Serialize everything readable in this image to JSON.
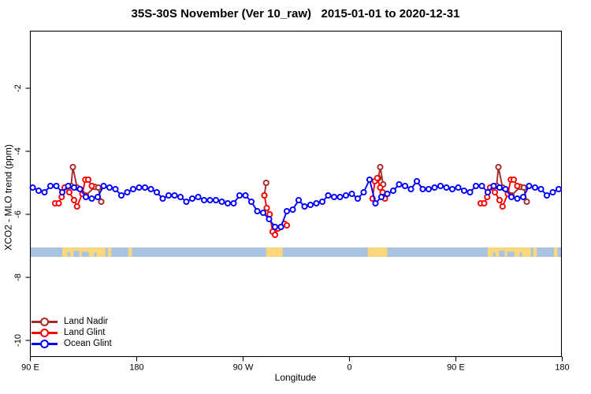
{
  "title": "35S-30S November (Ver 10_raw)   2015-01-01 to 2020-12-31",
  "axes": {
    "xlabel": "Longitude",
    "ylabel": "XCO2 - MLO trend (ppm)",
    "x_unit_note": "axis coordinate = degrees eastward of 90E, wrapping past the dateline; span 0-450",
    "xlim": [
      0,
      450
    ],
    "ylim": [
      -10.55,
      -0.2
    ],
    "x_ticks": [
      {
        "pos": 0,
        "label": "90 E"
      },
      {
        "pos": 90,
        "label": "180"
      },
      {
        "pos": 180,
        "label": "90 W"
      },
      {
        "pos": 270,
        "label": "0"
      },
      {
        "pos": 360,
        "label": "90 E"
      },
      {
        "pos": 450,
        "label": "180"
      }
    ],
    "y_ticks": [
      {
        "val": -2,
        "label": "-2"
      },
      {
        "val": -4,
        "label": "-4"
      },
      {
        "val": -6,
        "label": "-6"
      },
      {
        "val": -8,
        "label": "-8"
      },
      {
        "val": -10,
        "label": "-10"
      }
    ]
  },
  "legend": {
    "items": [
      {
        "label": "Land Nadir"
      },
      {
        "label": "Land Glint"
      },
      {
        "label": "Ocean Glint"
      }
    ]
  },
  "chart_data": {
    "type": "line",
    "marker": "open-circle",
    "x_axis": "degrees east of 90E (0-450, longitudes repeat after 360)",
    "y_axis": "XCO2 - MLO trend (ppm)",
    "series": [
      {
        "name": "Land Nadir",
        "color": "#A52A2A",
        "segments": [
          [
            [
              34.5,
              -5.1
            ],
            [
              36,
              -4.5
            ],
            [
              39.5,
              -5.15
            ],
            [
              47,
              -5.4
            ],
            [
              54.5,
              -5.13
            ],
            [
              57.5,
              -5.15
            ],
            [
              60,
              -5.6
            ]
          ],
          [
            [
              198,
              -5.4
            ],
            [
              199.5,
              -5.0
            ]
          ],
          [
            [
              294.5,
              -4.85
            ],
            [
              296,
              -4.5
            ],
            [
              298.5,
              -5.05
            ]
          ],
          [
            [
              394.5,
              -5.1
            ],
            [
              396,
              -4.5
            ],
            [
              399.5,
              -5.15
            ],
            [
              407,
              -5.4
            ],
            [
              414.5,
              -5.13
            ],
            [
              417.5,
              -5.15
            ],
            [
              420,
              -5.6
            ]
          ]
        ]
      },
      {
        "name": "Land Glint",
        "color": "#FF0000",
        "segments": [
          [
            [
              21,
              -5.65
            ],
            [
              24,
              -5.65
            ],
            [
              26.5,
              -5.45
            ],
            [
              29,
              -5.15
            ],
            [
              33,
              -5.3
            ],
            [
              37,
              -5.55
            ],
            [
              39.5,
              -5.75
            ],
            [
              44,
              -5.35
            ],
            [
              46.5,
              -4.9
            ],
            [
              49,
              -4.9
            ],
            [
              52,
              -5.1
            ]
          ],
          [
            [
              198,
              -5.4
            ],
            [
              200,
              -5.8
            ],
            [
              202.5,
              -6.0
            ],
            [
              205,
              -6.55
            ],
            [
              207,
              -6.65
            ],
            [
              209.5,
              -6.45
            ],
            [
              212,
              -6.4
            ],
            [
              215,
              -6.3
            ],
            [
              217,
              -6.35
            ]
          ],
          [
            [
              289.5,
              -5.5
            ],
            [
              291.5,
              -4.95
            ],
            [
              293.5,
              -4.85
            ],
            [
              296,
              -5.15
            ],
            [
              298,
              -5.3
            ],
            [
              300,
              -5.5
            ]
          ],
          [
            [
              381,
              -5.65
            ],
            [
              384,
              -5.65
            ],
            [
              386.5,
              -5.45
            ],
            [
              389,
              -5.15
            ],
            [
              393,
              -5.3
            ],
            [
              397,
              -5.55
            ],
            [
              399.5,
              -5.75
            ],
            [
              404,
              -5.35
            ],
            [
              406.5,
              -4.9
            ],
            [
              409,
              -4.9
            ],
            [
              412,
              -5.1
            ]
          ]
        ]
      },
      {
        "name": "Ocean Glint",
        "color": "#0000FF",
        "x_start": 2,
        "x_step": 5,
        "values": [
          -5.15,
          -5.25,
          -5.3,
          -5.1,
          -5.1,
          -5.3,
          -5.1,
          -5.15,
          -5.2,
          -5.45,
          -5.5,
          -5.45,
          -5.1,
          -5.15,
          -5.2,
          -5.4,
          -5.3,
          -5.2,
          -5.15,
          -5.15,
          -5.2,
          -5.3,
          -5.5,
          -5.4,
          -5.4,
          -5.45,
          -5.6,
          -5.5,
          -5.45,
          -5.55,
          -5.55,
          -5.55,
          -5.6,
          -5.65,
          -5.65,
          -5.4,
          -5.4,
          -5.6,
          -5.9,
          -5.95,
          -6.15,
          -6.4,
          -6.4,
          -5.9,
          -5.85,
          -5.55,
          -5.75,
          -5.7,
          -5.65,
          -5.6,
          -5.4,
          -5.45,
          -5.45,
          -5.4,
          -5.35,
          -5.5,
          -5.3,
          -4.9,
          -5.65,
          -5.45,
          -5.35,
          -5.25,
          -5.05,
          -5.1,
          -5.2,
          -4.95,
          -5.2,
          -5.2,
          -5.15,
          -5.1,
          -5.15,
          -5.2,
          -5.15,
          -5.25,
          -5.3,
          -5.1,
          -5.1,
          -5.3,
          -5.1,
          -5.15,
          -5.2,
          -5.45,
          -5.5,
          -5.45,
          -5.1,
          -5.15,
          -5.2,
          -5.4,
          -5.3,
          -5.2
        ]
      }
    ],
    "map_strip": {
      "description": "land/ocean strip for 35S-30S latitude band",
      "ocean_color": "#A9C3E1",
      "land_color": "#F9D77E",
      "val_top": -7.05,
      "val_bottom": -7.35,
      "land_patches": [
        {
          "from": 27,
          "to": 63.5
        },
        {
          "from": 65.5,
          "to": 68.5
        },
        {
          "from": 83,
          "to": 86
        },
        {
          "from": 199.5,
          "to": 213.5
        },
        {
          "from": 285.5,
          "to": 302
        },
        {
          "from": 387,
          "to": 423.5
        },
        {
          "from": 425.5,
          "to": 428.5
        },
        {
          "from": 443,
          "to": 446
        }
      ],
      "ocean_bites": [
        {
          "from": 31.5,
          "to": 33.5,
          "depth": 0.5
        },
        {
          "from": 36.5,
          "to": 41.5,
          "depth": 0.65
        },
        {
          "from": 43.5,
          "to": 49.5,
          "depth": 0.55
        },
        {
          "from": 54,
          "to": 56,
          "depth": 0.5
        },
        {
          "from": 391.5,
          "to": 393.5,
          "depth": 0.5
        },
        {
          "from": 396.5,
          "to": 401.5,
          "depth": 0.65
        },
        {
          "from": 403.5,
          "to": 409.5,
          "depth": 0.55
        },
        {
          "from": 414,
          "to": 416,
          "depth": 0.5
        }
      ]
    }
  }
}
